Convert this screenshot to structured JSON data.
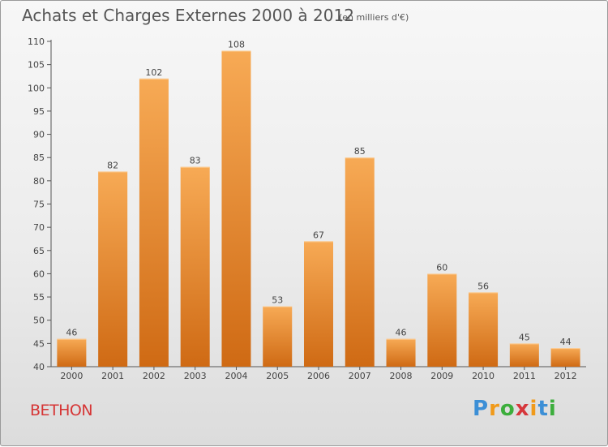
{
  "header": {
    "title": "Achats et Charges Externes 2000 à 2012",
    "subtitle": "(en milliers d'€)"
  },
  "footer": {
    "town": "BETHON",
    "logo": "Proxiti"
  },
  "colors": {
    "bar_top": "#f7aa55",
    "bar_bottom": "#cf6a14",
    "axis": "#555555",
    "title": "#555555",
    "town": "#d63535"
  },
  "chart_data": {
    "type": "bar",
    "title": "Achats et Charges Externes 2000 à 2012",
    "unit": "(en milliers d'€)",
    "categories": [
      "2000",
      "2001",
      "2002",
      "2003",
      "2004",
      "2005",
      "2006",
      "2007",
      "2008",
      "2009",
      "2010",
      "2011",
      "2012"
    ],
    "values": [
      46,
      82,
      102,
      83,
      108,
      53,
      67,
      85,
      46,
      60,
      56,
      45,
      44
    ],
    "ylim": [
      40,
      110
    ],
    "yticks": [
      40,
      45,
      50,
      55,
      60,
      65,
      70,
      75,
      80,
      85,
      90,
      95,
      100,
      105,
      110
    ],
    "grid": false,
    "xlabel": "",
    "ylabel": ""
  }
}
